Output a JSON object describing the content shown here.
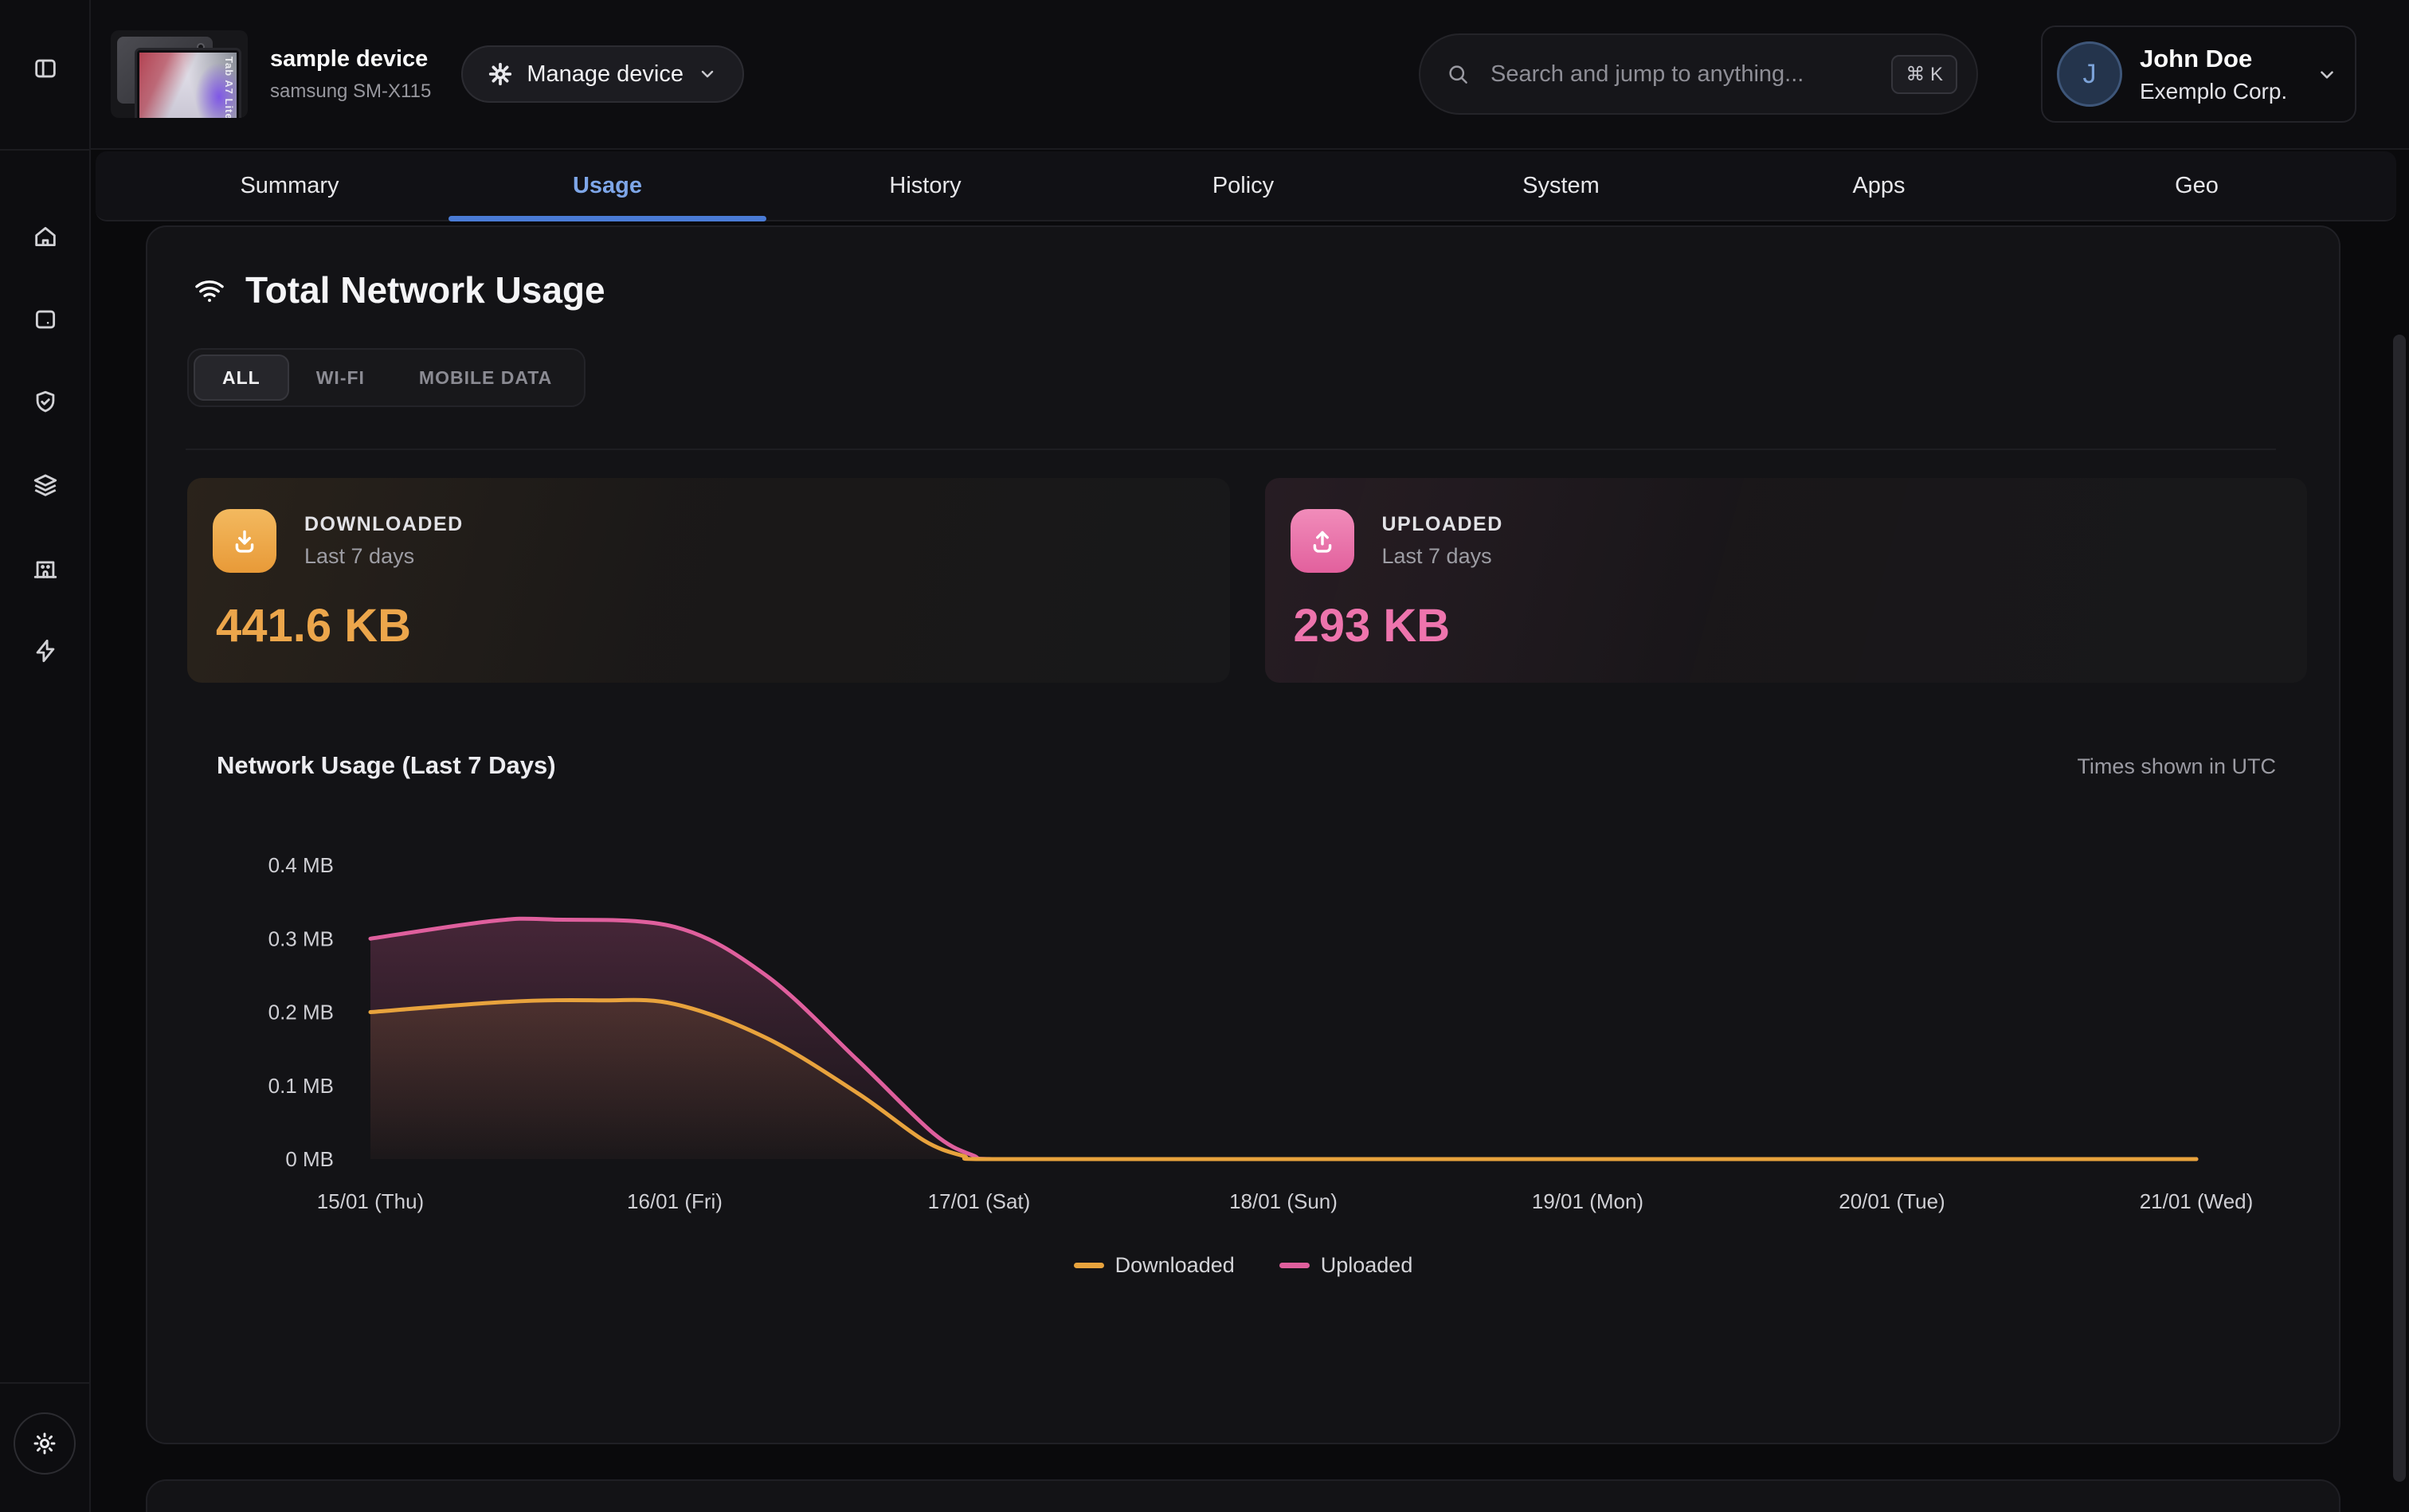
{
  "header": {
    "device_name": "sample device",
    "device_model": "samsung SM-X115",
    "device_thumbnail_text": "Tab A7 Lite",
    "manage_button_label": "Manage device",
    "search_placeholder": "Search and jump to anything...",
    "search_shortcut": "⌘ K",
    "user_name": "John Doe",
    "user_org": "Exemplo Corp.",
    "user_initial": "J"
  },
  "sidebar": {
    "icons": [
      "panel-left",
      "home",
      "tablet",
      "shield-check",
      "layers",
      "building",
      "zap"
    ],
    "footer_icon": "sun"
  },
  "tabs": [
    {
      "label": "Summary",
      "active": false
    },
    {
      "label": "Usage",
      "active": true
    },
    {
      "label": "History",
      "active": false
    },
    {
      "label": "Policy",
      "active": false
    },
    {
      "label": "System",
      "active": false
    },
    {
      "label": "Apps",
      "active": false
    },
    {
      "label": "Geo",
      "active": false
    }
  ],
  "colors": {
    "active_tab": "#7ea6e8",
    "tab_underline": "#4a7bd5",
    "downloaded_accent": "#eca64b",
    "uploaded_accent": "#ee74ad"
  },
  "section": {
    "title": "Total Network Usage",
    "filters": [
      {
        "label": "ALL",
        "active": true
      },
      {
        "label": "WI-FI",
        "active": false
      },
      {
        "label": "MOBILE DATA",
        "active": false
      }
    ],
    "stats": [
      {
        "id": "downloaded",
        "label": "DOWNLOADED",
        "period": "Last 7 days",
        "value": "441.6 KB",
        "accent": "#eca64b"
      },
      {
        "id": "uploaded",
        "label": "UPLOADED",
        "period": "Last 7 days",
        "value": "293 KB",
        "accent": "#ee74ad"
      }
    ]
  },
  "chart_data": {
    "type": "area",
    "title": "Network Usage (Last 7 Days)",
    "note": "Times shown in UTC",
    "x_labels": [
      "15/01 (Thu)",
      "16/01 (Fri)",
      "17/01 (Sat)",
      "18/01 (Sun)",
      "19/01 (Mon)",
      "20/01 (Tue)",
      "21/01 (Wed)"
    ],
    "ylim": [
      0,
      0.4
    ],
    "yticks": [
      {
        "label": "0 MB",
        "value": 0
      },
      {
        "label": "0.1 MB",
        "value": 0.1
      },
      {
        "label": "0.2 MB",
        "value": 0.2
      },
      {
        "label": "0.3 MB",
        "value": 0.3
      },
      {
        "label": "0.4 MB",
        "value": 0.4
      }
    ],
    "grid": false,
    "legend_position": "bottom",
    "series": [
      {
        "name": "Downloaded",
        "color": "#e8a33d",
        "x": [
          0,
          0.45,
          0.75,
          1,
          1.3,
          1.6,
          1.82,
          1.95,
          2,
          2.5,
          3,
          4,
          5,
          6
        ],
        "values": [
          0.2,
          0.214,
          0.216,
          0.211,
          0.165,
          0.09,
          0.025,
          0.004,
          0,
          0,
          0,
          0,
          0,
          0
        ]
      },
      {
        "name": "Uploaded",
        "color": "#df5f9d",
        "x": [
          0,
          0.4,
          0.6,
          1,
          1.3,
          1.6,
          1.85,
          1.98,
          2.05,
          2.5,
          3,
          4,
          5,
          6
        ],
        "values": [
          0.3,
          0.324,
          0.326,
          0.316,
          0.25,
          0.135,
          0.035,
          0.005,
          0,
          0,
          0,
          0,
          0,
          0
        ]
      }
    ]
  }
}
